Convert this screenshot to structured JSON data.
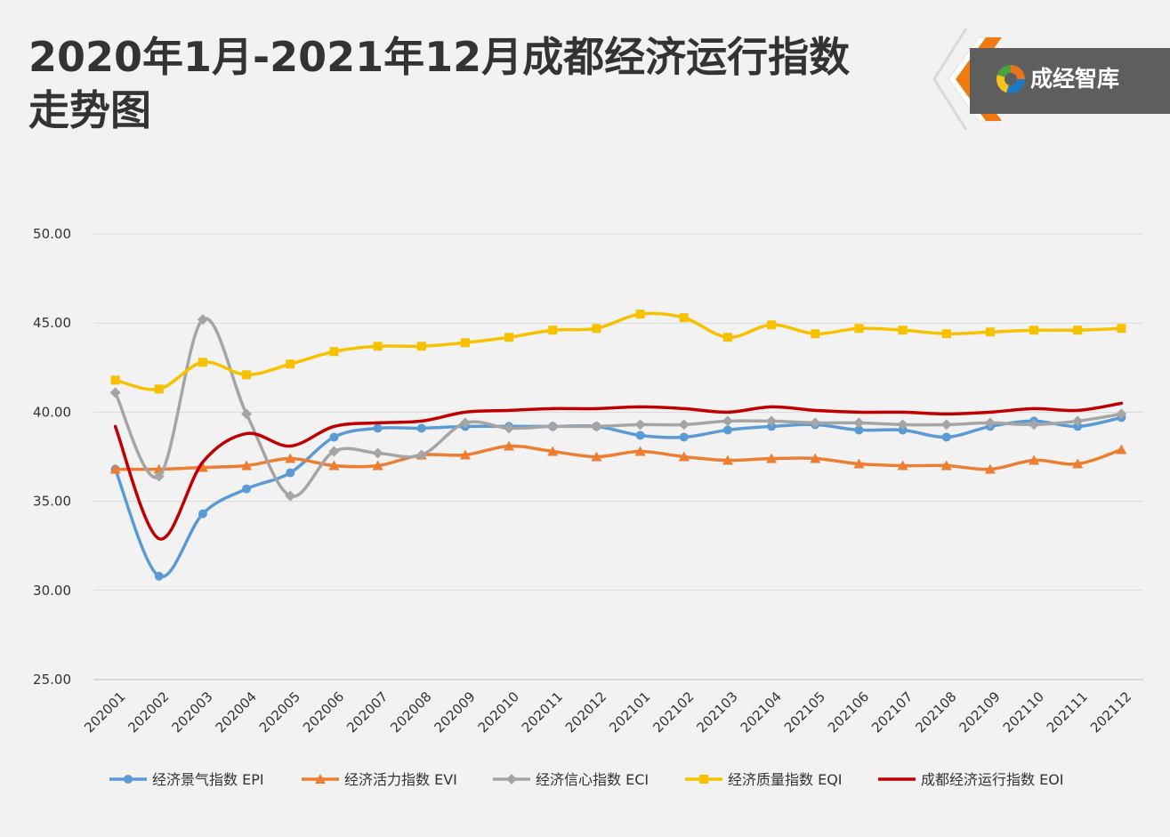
{
  "header": {
    "title_line1": "2020年1月-2021年12月成都经济运行指数",
    "title_line2": "走势图"
  },
  "logo": {
    "text": "成经智库"
  },
  "chart_data": {
    "type": "line",
    "categories": [
      "202001",
      "202002",
      "202003",
      "202004",
      "202005",
      "202006",
      "202007",
      "202008",
      "202009",
      "202010",
      "202011",
      "202012",
      "202101",
      "202102",
      "202103",
      "202104",
      "202105",
      "202106",
      "202107",
      "202108",
      "202109",
      "202110",
      "202111",
      "202112"
    ],
    "ylim": [
      25,
      50
    ],
    "yticks": [
      "25.00",
      "30.00",
      "35.00",
      "40.00",
      "45.00",
      "50.00"
    ],
    "grid": true,
    "legend_position": "bottom",
    "series": [
      {
        "name": "经济景气指数 EPI",
        "color": "#5b9bd5",
        "marker": "circle",
        "values": [
          36.8,
          30.8,
          34.3,
          35.7,
          36.6,
          38.6,
          39.1,
          39.1,
          39.2,
          39.2,
          39.2,
          39.2,
          38.7,
          38.6,
          39.0,
          39.2,
          39.3,
          39.0,
          39.0,
          38.6,
          39.2,
          39.5,
          39.2,
          39.7
        ]
      },
      {
        "name": "经济活力指数 EVI",
        "color": "#ed7d31",
        "marker": "triangle",
        "values": [
          36.8,
          36.8,
          36.9,
          37.0,
          37.4,
          37.0,
          37.0,
          37.6,
          37.6,
          38.1,
          37.8,
          37.5,
          37.8,
          37.5,
          37.3,
          37.4,
          37.4,
          37.1,
          37.0,
          37.0,
          36.8,
          37.3,
          37.1,
          37.9
        ]
      },
      {
        "name": "经济信心指数 ECI",
        "color": "#a5a5a5",
        "marker": "diamond",
        "values": [
          41.1,
          36.4,
          45.2,
          39.9,
          35.3,
          37.8,
          37.7,
          37.6,
          39.4,
          39.1,
          39.2,
          39.2,
          39.3,
          39.3,
          39.5,
          39.5,
          39.4,
          39.4,
          39.3,
          39.3,
          39.4,
          39.3,
          39.5,
          39.9
        ]
      },
      {
        "name": "经济质量指数 EQI",
        "color": "#f8c100",
        "marker": "square",
        "values": [
          41.8,
          41.3,
          42.8,
          42.1,
          42.7,
          43.4,
          43.7,
          43.7,
          43.9,
          44.2,
          44.6,
          44.7,
          45.5,
          45.3,
          44.2,
          44.9,
          44.4,
          44.7,
          44.6,
          44.4,
          44.5,
          44.6,
          44.6,
          44.7
        ]
      },
      {
        "name": "成都经济运行指数 EOI",
        "color": "#c00000",
        "marker": "none",
        "values": [
          39.2,
          32.9,
          37.2,
          38.8,
          38.1,
          39.2,
          39.4,
          39.5,
          40.0,
          40.1,
          40.2,
          40.2,
          40.3,
          40.2,
          40.0,
          40.3,
          40.1,
          40.0,
          40.0,
          39.9,
          40.0,
          40.2,
          40.1,
          40.5
        ]
      }
    ]
  }
}
